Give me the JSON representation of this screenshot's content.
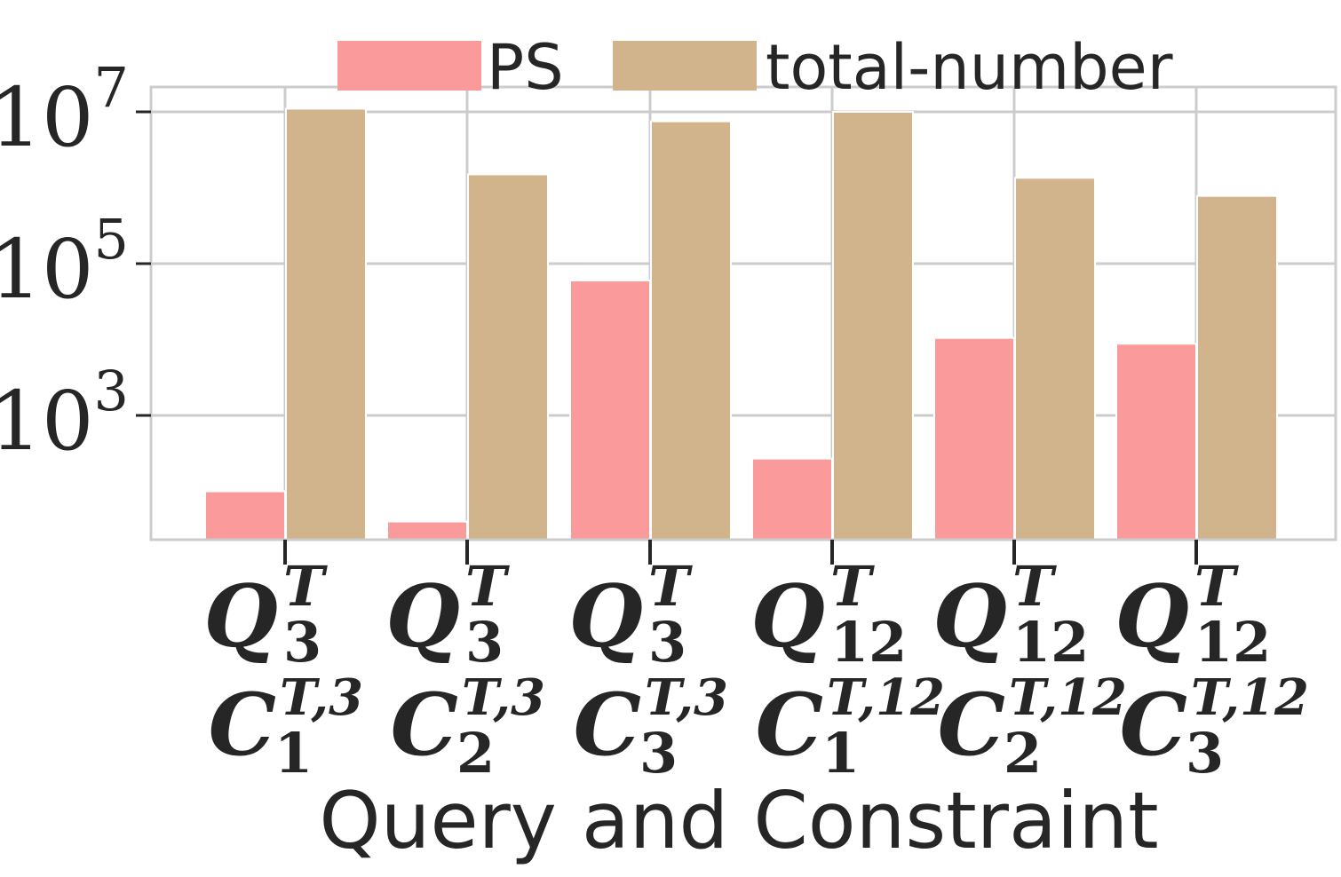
{
  "chart_data": {
    "type": "bar",
    "xlabel": "Query and Constraint",
    "ylabel": "",
    "yscale": "log",
    "ylim": [
      20,
      20000000
    ],
    "yticks": [
      {
        "value": 1000,
        "base": "10",
        "exp": "3"
      },
      {
        "value": 100000,
        "base": "10",
        "exp": "5"
      },
      {
        "value": 10000000,
        "base": "10",
        "exp": "7"
      }
    ],
    "grid": true,
    "legend": "top-center",
    "categories": [
      {
        "query": "Q",
        "query_sup": "T",
        "query_sub": "3",
        "constraint": "C",
        "constraint_sup": "T,3",
        "constraint_sub": "1"
      },
      {
        "query": "Q",
        "query_sup": "T",
        "query_sub": "3",
        "constraint": "C",
        "constraint_sup": "T,3",
        "constraint_sub": "2"
      },
      {
        "query": "Q",
        "query_sup": "T",
        "query_sub": "3",
        "constraint": "C",
        "constraint_sup": "T,3",
        "constraint_sub": "3"
      },
      {
        "query": "Q",
        "query_sup": "T",
        "query_sub": "12",
        "constraint": "C",
        "constraint_sup": "T,12",
        "constraint_sub": "1"
      },
      {
        "query": "Q",
        "query_sup": "T",
        "query_sub": "12",
        "constraint": "C",
        "constraint_sup": "T,12",
        "constraint_sub": "2"
      },
      {
        "query": "Q",
        "query_sup": "T",
        "query_sub": "12",
        "constraint": "C",
        "constraint_sup": "T,12",
        "constraint_sub": "3"
      }
    ],
    "series": [
      {
        "name": "PS",
        "color": "#fa9a9b",
        "values": [
          100,
          40,
          60000,
          270,
          10500,
          8800
        ]
      },
      {
        "name": "total-number",
        "color": "#d2b48c",
        "values": [
          11000000,
          1500000,
          7500000,
          10000000,
          1350000,
          780000
        ]
      }
    ]
  },
  "colors": {
    "grid": "#cccccc",
    "axis": "#cccccc",
    "text": "#262626",
    "background": "#ffffff"
  }
}
